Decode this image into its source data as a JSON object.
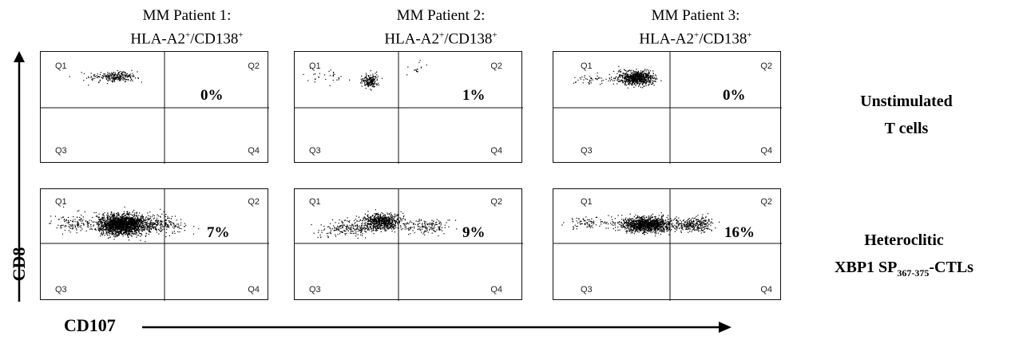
{
  "columns": [
    {
      "title": "MM Patient 1:",
      "subtitle_main": "HLA-A2",
      "subtitle_sup1": "+",
      "subtitle_mid": "/CD138",
      "subtitle_sup2": "+"
    },
    {
      "title": "MM Patient 2:",
      "subtitle_main": "HLA-A2",
      "subtitle_sup1": "+",
      "subtitle_mid": "/CD138",
      "subtitle_sup2": "+"
    },
    {
      "title": "MM Patient 3:",
      "subtitle_main": "HLA-A2",
      "subtitle_sup1": "+",
      "subtitle_mid": "/CD138",
      "subtitle_sup2": "+"
    }
  ],
  "rows": [
    {
      "line1": "Unstimulated",
      "line2": "T cells"
    },
    {
      "line1": "Heteroclitic",
      "line2_main": "XBP1 SP",
      "line2_sub": "367-375",
      "line2_end": "-CTLs"
    }
  ],
  "quadrant_labels": {
    "q1": "Q1",
    "q2": "Q2",
    "q3": "Q3",
    "q4": "Q4"
  },
  "panels": [
    {
      "row": 0,
      "col": 0,
      "percent": "0%"
    },
    {
      "row": 0,
      "col": 1,
      "percent": "1%"
    },
    {
      "row": 0,
      "col": 2,
      "percent": "0%"
    },
    {
      "row": 1,
      "col": 0,
      "percent": "7%"
    },
    {
      "row": 1,
      "col": 1,
      "percent": "9%"
    },
    {
      "row": 1,
      "col": 2,
      "percent": "16%"
    }
  ],
  "axes": {
    "y_label": "CD8",
    "x_label": "CD107"
  },
  "colors": {
    "dots": "#000000",
    "axis": "#000000"
  }
}
